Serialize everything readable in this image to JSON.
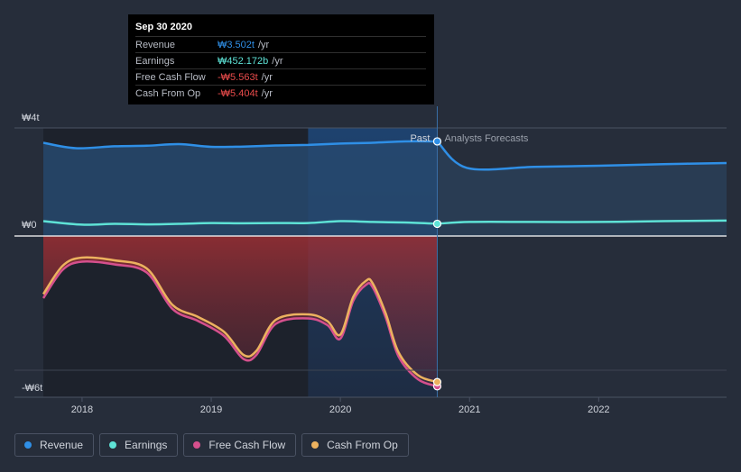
{
  "chart_data": {
    "type": "area",
    "title": "",
    "currency_note": "₩",
    "y_ticks": [
      {
        "value": 4,
        "label": "₩4t"
      },
      {
        "value": 0,
        "label": "₩0"
      },
      {
        "value": -6,
        "label": "-₩6t"
      }
    ],
    "ylim": [
      -6.0,
      4.0
    ],
    "xlim": [
      2017.7,
      2022.99
    ],
    "x_ticks": [
      {
        "value": 2018.0,
        "label": "2018"
      },
      {
        "value": 2019.0,
        "label": "2019"
      },
      {
        "value": 2020.0,
        "label": "2020"
      },
      {
        "value": 2021.0,
        "label": "2021"
      },
      {
        "value": 2022.0,
        "label": "2022"
      }
    ],
    "past_end": 2020.75,
    "highlight_start": 2019.75,
    "past_label": "Past",
    "forecast_label": "Analysts Forecasts",
    "series": [
      {
        "name": "Revenue",
        "color": "#2f8fe6",
        "fill": true,
        "x": [
          2017.7,
          2017.95,
          2018.25,
          2018.5,
          2018.75,
          2019.0,
          2019.25,
          2019.5,
          2019.75,
          2020.0,
          2020.25,
          2020.5,
          2020.75
        ],
        "values": [
          3.45,
          3.25,
          3.32,
          3.34,
          3.4,
          3.3,
          3.31,
          3.35,
          3.37,
          3.42,
          3.45,
          3.5,
          3.5
        ]
      },
      {
        "name": "Revenue forecast",
        "color": "#2f8fe6",
        "fill": true,
        "forecast": true,
        "x": [
          2020.75,
          2020.98,
          2021.5,
          2022.0,
          2022.5,
          2022.99
        ],
        "values": [
          3.5,
          2.52,
          2.56,
          2.6,
          2.66,
          2.7
        ]
      },
      {
        "name": "Earnings",
        "color": "#5ee2d6",
        "fill": false,
        "x": [
          2017.7,
          2018.0,
          2018.25,
          2018.5,
          2018.75,
          2019.0,
          2019.25,
          2019.5,
          2019.75,
          2020.0,
          2020.25,
          2020.5,
          2020.75
        ],
        "values": [
          0.55,
          0.42,
          0.45,
          0.43,
          0.45,
          0.48,
          0.47,
          0.48,
          0.48,
          0.55,
          0.52,
          0.5,
          0.452
        ]
      },
      {
        "name": "Earnings forecast",
        "color": "#5ee2d6",
        "fill": false,
        "forecast": true,
        "x": [
          2020.75,
          2021.0,
          2021.5,
          2022.0,
          2022.5,
          2022.99
        ],
        "values": [
          0.452,
          0.52,
          0.52,
          0.52,
          0.55,
          0.57
        ]
      },
      {
        "name": "Free Cash Flow",
        "color": "#d5508d",
        "fill": true,
        "x": [
          2017.7,
          2017.85,
          2018.0,
          2018.25,
          2018.5,
          2018.7,
          2018.9,
          2019.1,
          2019.25,
          2019.35,
          2019.5,
          2019.75,
          2019.9,
          2020.0,
          2020.1,
          2020.2,
          2020.25,
          2020.35,
          2020.45,
          2020.6,
          2020.75
        ],
        "values": [
          -2.3,
          -1.25,
          -0.95,
          -1.05,
          -1.35,
          -2.7,
          -3.15,
          -3.7,
          -4.55,
          -4.4,
          -3.25,
          -3.05,
          -3.3,
          -3.8,
          -2.4,
          -1.8,
          -1.9,
          -3.0,
          -4.45,
          -5.3,
          -5.563
        ]
      },
      {
        "name": "Cash From Op",
        "color": "#ecb25f",
        "fill": false,
        "x": [
          2017.7,
          2017.85,
          2018.0,
          2018.25,
          2018.5,
          2018.7,
          2018.9,
          2019.1,
          2019.25,
          2019.35,
          2019.5,
          2019.75,
          2019.9,
          2020.0,
          2020.1,
          2020.2,
          2020.25,
          2020.35,
          2020.45,
          2020.6,
          2020.75
        ],
        "values": [
          -2.15,
          -1.1,
          -0.8,
          -0.9,
          -1.2,
          -2.55,
          -3.0,
          -3.55,
          -4.4,
          -4.25,
          -3.1,
          -2.9,
          -3.15,
          -3.65,
          -2.25,
          -1.65,
          -1.75,
          -2.85,
          -4.3,
          -5.15,
          -5.404
        ]
      }
    ]
  },
  "tooltip": {
    "date": "Sep 30 2020",
    "rows": [
      {
        "label": "Revenue",
        "value": "₩3.502t",
        "unit": "/yr",
        "color": "#2f8fe6"
      },
      {
        "label": "Earnings",
        "value": "₩452.172b",
        "unit": "/yr",
        "color": "#5ee2d6"
      },
      {
        "label": "Free Cash Flow",
        "value": "-₩5.563t",
        "unit": "/yr",
        "color": "#e84b4b"
      },
      {
        "label": "Cash From Op",
        "value": "-₩5.404t",
        "unit": "/yr",
        "color": "#e84b4b"
      }
    ]
  },
  "legend": [
    {
      "label": "Revenue",
      "color": "#2f8fe6"
    },
    {
      "label": "Earnings",
      "color": "#5ee2d6"
    },
    {
      "label": "Free Cash Flow",
      "color": "#d5508d"
    },
    {
      "label": "Cash From Op",
      "color": "#ecb25f"
    }
  ]
}
